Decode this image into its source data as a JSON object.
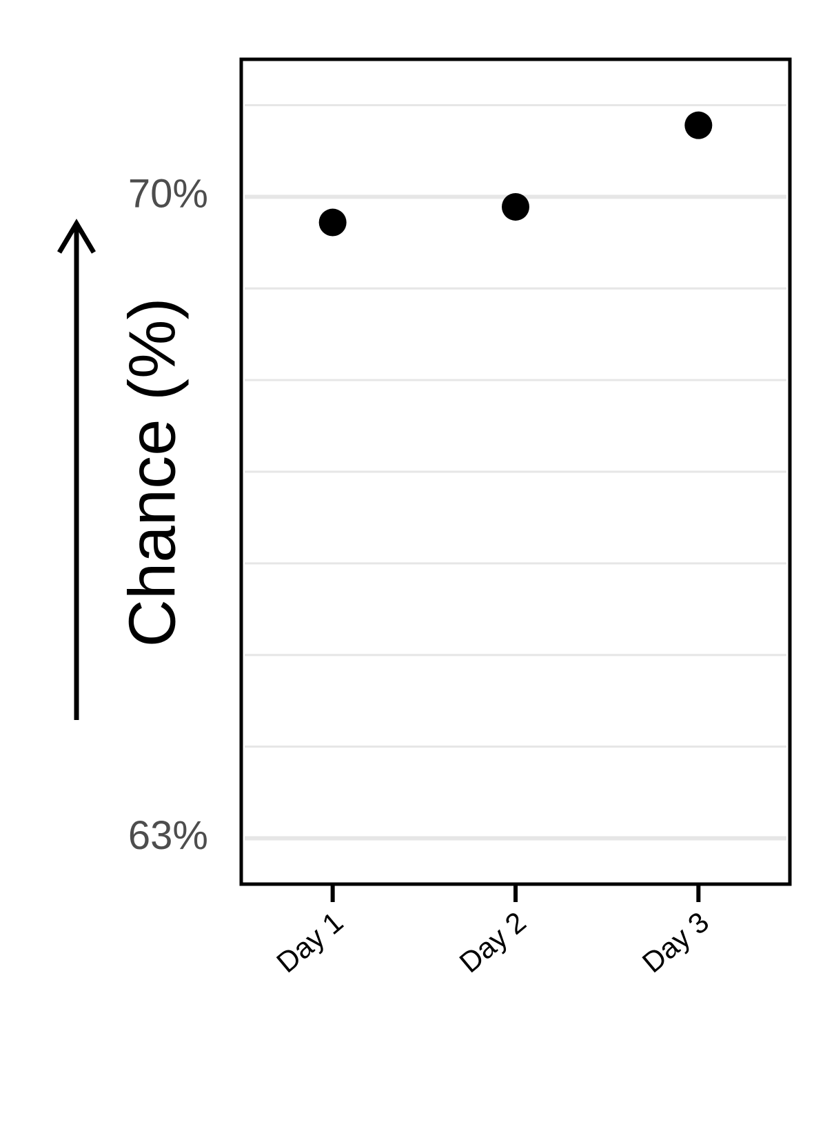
{
  "chart_data": {
    "type": "scatter",
    "categories": [
      "Day 1",
      "Day 2",
      "Day 3"
    ],
    "values": [
      69.72,
      69.89,
      70.78
    ],
    "ylabel": "Chance (%)",
    "xlabel": "",
    "title": "",
    "ylim": [
      62.5,
      71.5
    ],
    "y_major_ticks": [
      63,
      70
    ],
    "y_tick_labels": [
      "63%",
      "70%"
    ],
    "y_minor_gridlines": [
      62,
      64,
      65,
      66,
      67,
      68,
      69,
      71
    ],
    "grid": true,
    "legend": "none",
    "point_color": "#000000",
    "ylabel_arrow": "up"
  }
}
